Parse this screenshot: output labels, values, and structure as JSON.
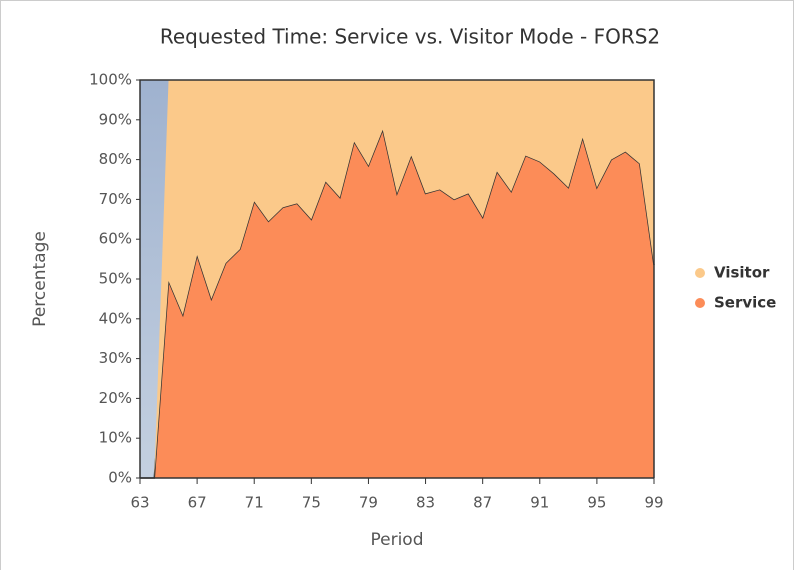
{
  "chart_data": {
    "type": "stacked_area",
    "title": "Requested Time: Service vs. Visitor Mode - FORS2",
    "x_label": "Period",
    "y_label": "Percentage",
    "x": [
      63,
      64,
      65,
      66,
      67,
      68,
      69,
      70,
      71,
      72,
      73,
      74,
      75,
      76,
      77,
      78,
      79,
      80,
      81,
      82,
      83,
      84,
      85,
      86,
      87,
      88,
      89,
      90,
      91,
      92,
      93,
      94,
      95,
      96,
      97,
      98,
      99
    ],
    "series": [
      {
        "name": "Service",
        "color": "#fc8c58",
        "values": [
          0,
          0,
          49.5,
          41,
          56,
          45,
          54,
          57.5,
          69.5,
          64.5,
          68,
          69,
          65,
          74.5,
          70.5,
          84.5,
          78.5,
          87.5,
          71.5,
          81,
          71.5,
          72.5,
          70,
          71.5,
          65.5,
          77,
          72,
          81,
          79.5,
          76.5,
          73,
          85.5,
          73,
          80,
          82,
          79,
          53.5
        ]
      },
      {
        "name": "Visitor",
        "color": "#fbc98a",
        "values": [
          0,
          0,
          50.5,
          59,
          44,
          55,
          46,
          42.5,
          30.5,
          35.5,
          32,
          31,
          35,
          25.5,
          29.5,
          15.5,
          21.5,
          12.5,
          28.5,
          19,
          28.5,
          27.5,
          30,
          28.5,
          34.5,
          23,
          28,
          19,
          20.5,
          23.5,
          27,
          14.5,
          27,
          20,
          18,
          21,
          46.5
        ]
      }
    ],
    "xlim": [
      63,
      99
    ],
    "xticks": [
      63,
      67,
      71,
      75,
      79,
      83,
      87,
      91,
      95,
      99
    ],
    "ylim": [
      0,
      100
    ],
    "yticks": [
      {
        "value": 0,
        "label": "0%"
      },
      {
        "value": 10,
        "label": "10%"
      },
      {
        "value": 20,
        "label": "20%"
      },
      {
        "value": 30,
        "label": "30%"
      },
      {
        "value": 40,
        "label": "40%"
      },
      {
        "value": 50,
        "label": "50%"
      },
      {
        "value": 60,
        "label": "60%"
      },
      {
        "value": 70,
        "label": "70%"
      },
      {
        "value": 80,
        "label": "80%"
      },
      {
        "value": 90,
        "label": "90%"
      },
      {
        "value": 100,
        "label": "100%"
      }
    ],
    "legend": "right"
  }
}
